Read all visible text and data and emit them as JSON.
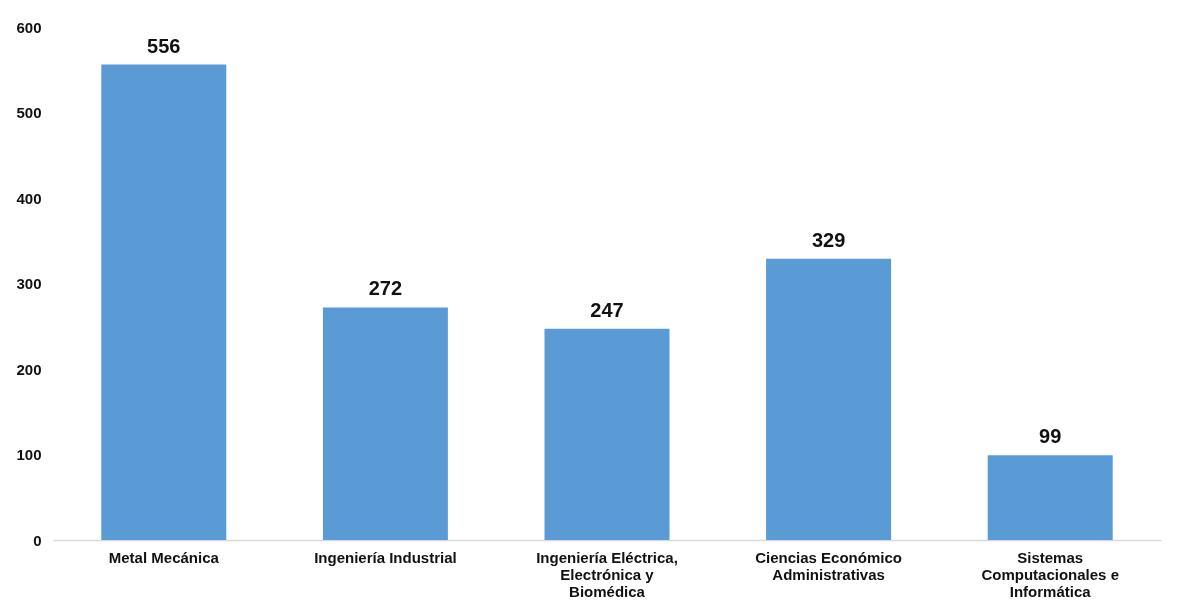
{
  "chart_data": {
    "type": "bar",
    "categories": [
      "Metal Mecánica",
      "Ingeniería Industrial",
      "Ingeniería Eléctrica, Electrónica y Biomédica",
      "Ciencias Económico Administrativas",
      "Sistemas Computacionales e Informática"
    ],
    "values": [
      556,
      272,
      247,
      329,
      99
    ],
    "color": "#5b9bd5",
    "ylim": [
      0,
      600
    ],
    "yticks": [
      0,
      100,
      200,
      300,
      400,
      500,
      600
    ],
    "grid": false,
    "data_labels": true
  }
}
